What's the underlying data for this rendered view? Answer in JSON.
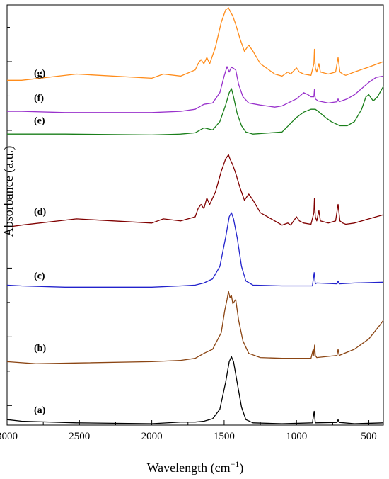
{
  "chart_data": {
    "type": "line",
    "xlabel": "Wavelength (cm",
    "xlabel_sup": "−1",
    "xlabel_tail": ")",
    "ylabel": "Absorbance (a.u.)",
    "xlim": [
      3000,
      400
    ],
    "x_reversed": true,
    "ylim": [
      0,
      1
    ],
    "y_ticks_labeled": false,
    "x_ticks": [
      3000,
      2500,
      2000,
      1500,
      1000,
      500
    ],
    "x_tick_labels": [
      "3000",
      "2500",
      "2000",
      "1500",
      "1000",
      "500"
    ],
    "y_ticks": [
      0.044,
      0.127,
      0.21,
      0.293,
      0.376,
      0.46,
      0.543,
      0.626,
      0.709,
      0.792,
      0.875,
      0.958
    ],
    "series": [
      {
        "name": "(a)",
        "color": "#000000",
        "label_y": 0.015,
        "points": [
          [
            3000,
            0.01
          ],
          [
            2900,
            0.006
          ],
          [
            2520,
            0.002
          ],
          [
            2000,
            0.0
          ],
          [
            1800,
            0.004
          ],
          [
            1700,
            0.004
          ],
          [
            1640,
            0.006
          ],
          [
            1580,
            0.012
          ],
          [
            1530,
            0.035
          ],
          [
            1490,
            0.1
          ],
          [
            1465,
            0.15
          ],
          [
            1450,
            0.162
          ],
          [
            1435,
            0.15
          ],
          [
            1410,
            0.1
          ],
          [
            1380,
            0.04
          ],
          [
            1350,
            0.01
          ],
          [
            1300,
            0.002
          ],
          [
            1100,
            0.0
          ],
          [
            890,
            0.002
          ],
          [
            878,
            0.03
          ],
          [
            870,
            0.002
          ],
          [
            720,
            0.003
          ],
          [
            713,
            0.01
          ],
          [
            705,
            0.003
          ],
          [
            600,
            0.0
          ],
          [
            400,
            0.002
          ]
        ]
      },
      {
        "name": "(b)",
        "color": "#8B4513",
        "label_y": 0.165,
        "points": [
          [
            3000,
            0.15
          ],
          [
            2800,
            0.145
          ],
          [
            2500,
            0.147
          ],
          [
            2000,
            0.15
          ],
          [
            1800,
            0.153
          ],
          [
            1700,
            0.158
          ],
          [
            1640,
            0.17
          ],
          [
            1580,
            0.18
          ],
          [
            1520,
            0.22
          ],
          [
            1495,
            0.275
          ],
          [
            1480,
            0.3
          ],
          [
            1470,
            0.32
          ],
          [
            1460,
            0.305
          ],
          [
            1450,
            0.31
          ],
          [
            1440,
            0.29
          ],
          [
            1420,
            0.3
          ],
          [
            1400,
            0.25
          ],
          [
            1370,
            0.2
          ],
          [
            1330,
            0.17
          ],
          [
            1250,
            0.16
          ],
          [
            1100,
            0.158
          ],
          [
            900,
            0.158
          ],
          [
            885,
            0.18
          ],
          [
            880,
            0.165
          ],
          [
            875,
            0.19
          ],
          [
            870,
            0.165
          ],
          [
            860,
            0.16
          ],
          [
            720,
            0.165
          ],
          [
            713,
            0.18
          ],
          [
            705,
            0.165
          ],
          [
            600,
            0.18
          ],
          [
            500,
            0.205
          ],
          [
            420,
            0.24
          ],
          [
            400,
            0.25
          ]
        ]
      },
      {
        "name": "(c)",
        "color": "#2222CC",
        "label_y": 0.34,
        "points": [
          [
            3000,
            0.335
          ],
          [
            2900,
            0.333
          ],
          [
            2600,
            0.33
          ],
          [
            2000,
            0.33
          ],
          [
            1800,
            0.333
          ],
          [
            1700,
            0.335
          ],
          [
            1640,
            0.34
          ],
          [
            1580,
            0.35
          ],
          [
            1530,
            0.38
          ],
          [
            1490,
            0.45
          ],
          [
            1465,
            0.5
          ],
          [
            1450,
            0.51
          ],
          [
            1435,
            0.495
          ],
          [
            1410,
            0.45
          ],
          [
            1380,
            0.38
          ],
          [
            1350,
            0.345
          ],
          [
            1300,
            0.335
          ],
          [
            1100,
            0.333
          ],
          [
            890,
            0.333
          ],
          [
            878,
            0.365
          ],
          [
            870,
            0.338
          ],
          [
            860,
            0.34
          ],
          [
            720,
            0.338
          ],
          [
            713,
            0.345
          ],
          [
            705,
            0.338
          ],
          [
            600,
            0.34
          ],
          [
            400,
            0.342
          ]
        ]
      },
      {
        "name": "(d)",
        "color": "#800000",
        "label_y": 0.495,
        "points": [
          [
            3000,
            0.475
          ],
          [
            2900,
            0.48
          ],
          [
            2520,
            0.495
          ],
          [
            2000,
            0.485
          ],
          [
            1920,
            0.495
          ],
          [
            1800,
            0.49
          ],
          [
            1700,
            0.5
          ],
          [
            1680,
            0.52
          ],
          [
            1660,
            0.53
          ],
          [
            1640,
            0.52
          ],
          [
            1620,
            0.545
          ],
          [
            1600,
            0.53
          ],
          [
            1560,
            0.56
          ],
          [
            1520,
            0.61
          ],
          [
            1490,
            0.64
          ],
          [
            1470,
            0.65
          ],
          [
            1460,
            0.64
          ],
          [
            1440,
            0.625
          ],
          [
            1420,
            0.605
          ],
          [
            1390,
            0.57
          ],
          [
            1360,
            0.54
          ],
          [
            1330,
            0.555
          ],
          [
            1300,
            0.54
          ],
          [
            1250,
            0.51
          ],
          [
            1150,
            0.49
          ],
          [
            1100,
            0.48
          ],
          [
            1060,
            0.485
          ],
          [
            1040,
            0.48
          ],
          [
            1000,
            0.5
          ],
          [
            980,
            0.49
          ],
          [
            950,
            0.485
          ],
          [
            900,
            0.482
          ],
          [
            880,
            0.51
          ],
          [
            876,
            0.545
          ],
          [
            870,
            0.5
          ],
          [
            860,
            0.49
          ],
          [
            845,
            0.515
          ],
          [
            835,
            0.49
          ],
          [
            780,
            0.485
          ],
          [
            730,
            0.49
          ],
          [
            713,
            0.53
          ],
          [
            700,
            0.49
          ],
          [
            680,
            0.485
          ],
          [
            660,
            0.482
          ],
          [
            600,
            0.485
          ],
          [
            500,
            0.495
          ],
          [
            400,
            0.505
          ]
        ]
      },
      {
        "name": "(e)",
        "color": "#1A7F1A",
        "label_y": 0.715,
        "points": [
          [
            3000,
            0.7
          ],
          [
            2900,
            0.7
          ],
          [
            2600,
            0.7
          ],
          [
            2000,
            0.698
          ],
          [
            1800,
            0.7
          ],
          [
            1700,
            0.703
          ],
          [
            1640,
            0.715
          ],
          [
            1580,
            0.71
          ],
          [
            1530,
            0.73
          ],
          [
            1490,
            0.77
          ],
          [
            1465,
            0.8
          ],
          [
            1450,
            0.81
          ],
          [
            1435,
            0.79
          ],
          [
            1410,
            0.75
          ],
          [
            1380,
            0.72
          ],
          [
            1350,
            0.705
          ],
          [
            1300,
            0.7
          ],
          [
            1100,
            0.705
          ],
          [
            1000,
            0.74
          ],
          [
            950,
            0.753
          ],
          [
            900,
            0.76
          ],
          [
            870,
            0.76
          ],
          [
            850,
            0.755
          ],
          [
            800,
            0.74
          ],
          [
            760,
            0.73
          ],
          [
            700,
            0.72
          ],
          [
            650,
            0.72
          ],
          [
            600,
            0.73
          ],
          [
            550,
            0.76
          ],
          [
            520,
            0.79
          ],
          [
            500,
            0.795
          ],
          [
            470,
            0.78
          ],
          [
            440,
            0.79
          ],
          [
            400,
            0.815
          ]
        ]
      },
      {
        "name": "(f)",
        "color": "#9932CC",
        "label_y": 0.77,
        "points": [
          [
            3000,
            0.755
          ],
          [
            2900,
            0.755
          ],
          [
            2600,
            0.752
          ],
          [
            2000,
            0.752
          ],
          [
            1800,
            0.755
          ],
          [
            1700,
            0.76
          ],
          [
            1640,
            0.772
          ],
          [
            1580,
            0.775
          ],
          [
            1530,
            0.8
          ],
          [
            1500,
            0.84
          ],
          [
            1480,
            0.863
          ],
          [
            1465,
            0.85
          ],
          [
            1450,
            0.862
          ],
          [
            1420,
            0.855
          ],
          [
            1400,
            0.82
          ],
          [
            1370,
            0.79
          ],
          [
            1330,
            0.775
          ],
          [
            1250,
            0.77
          ],
          [
            1150,
            0.765
          ],
          [
            1100,
            0.768
          ],
          [
            1060,
            0.775
          ],
          [
            1000,
            0.785
          ],
          [
            950,
            0.8
          ],
          [
            920,
            0.795
          ],
          [
            900,
            0.79
          ],
          [
            880,
            0.79
          ],
          [
            876,
            0.808
          ],
          [
            870,
            0.785
          ],
          [
            850,
            0.78
          ],
          [
            780,
            0.775
          ],
          [
            720,
            0.778
          ],
          [
            713,
            0.785
          ],
          [
            705,
            0.778
          ],
          [
            650,
            0.785
          ],
          [
            600,
            0.795
          ],
          [
            550,
            0.81
          ],
          [
            500,
            0.825
          ],
          [
            450,
            0.837
          ],
          [
            400,
            0.84
          ]
        ]
      },
      {
        "name": "(g)",
        "color": "#FF8C1A",
        "label_y": 0.83,
        "points": [
          [
            3000,
            0.83
          ],
          [
            2900,
            0.83
          ],
          [
            2520,
            0.845
          ],
          [
            2000,
            0.835
          ],
          [
            1920,
            0.845
          ],
          [
            1800,
            0.84
          ],
          [
            1700,
            0.855
          ],
          [
            1680,
            0.87
          ],
          [
            1660,
            0.88
          ],
          [
            1640,
            0.87
          ],
          [
            1620,
            0.885
          ],
          [
            1600,
            0.87
          ],
          [
            1560,
            0.91
          ],
          [
            1520,
            0.97
          ],
          [
            1490,
            1.0
          ],
          [
            1470,
            1.005
          ],
          [
            1460,
            0.998
          ],
          [
            1440,
            0.985
          ],
          [
            1420,
            0.965
          ],
          [
            1390,
            0.93
          ],
          [
            1360,
            0.9
          ],
          [
            1330,
            0.915
          ],
          [
            1300,
            0.9
          ],
          [
            1250,
            0.87
          ],
          [
            1150,
            0.845
          ],
          [
            1100,
            0.84
          ],
          [
            1060,
            0.85
          ],
          [
            1040,
            0.845
          ],
          [
            1000,
            0.86
          ],
          [
            980,
            0.85
          ],
          [
            950,
            0.845
          ],
          [
            900,
            0.842
          ],
          [
            880,
            0.87
          ],
          [
            876,
            0.905
          ],
          [
            870,
            0.86
          ],
          [
            860,
            0.85
          ],
          [
            845,
            0.87
          ],
          [
            835,
            0.85
          ],
          [
            780,
            0.845
          ],
          [
            730,
            0.85
          ],
          [
            713,
            0.885
          ],
          [
            700,
            0.85
          ],
          [
            680,
            0.845
          ],
          [
            660,
            0.842
          ],
          [
            600,
            0.85
          ],
          [
            500,
            0.862
          ],
          [
            400,
            0.875
          ]
        ]
      }
    ]
  }
}
